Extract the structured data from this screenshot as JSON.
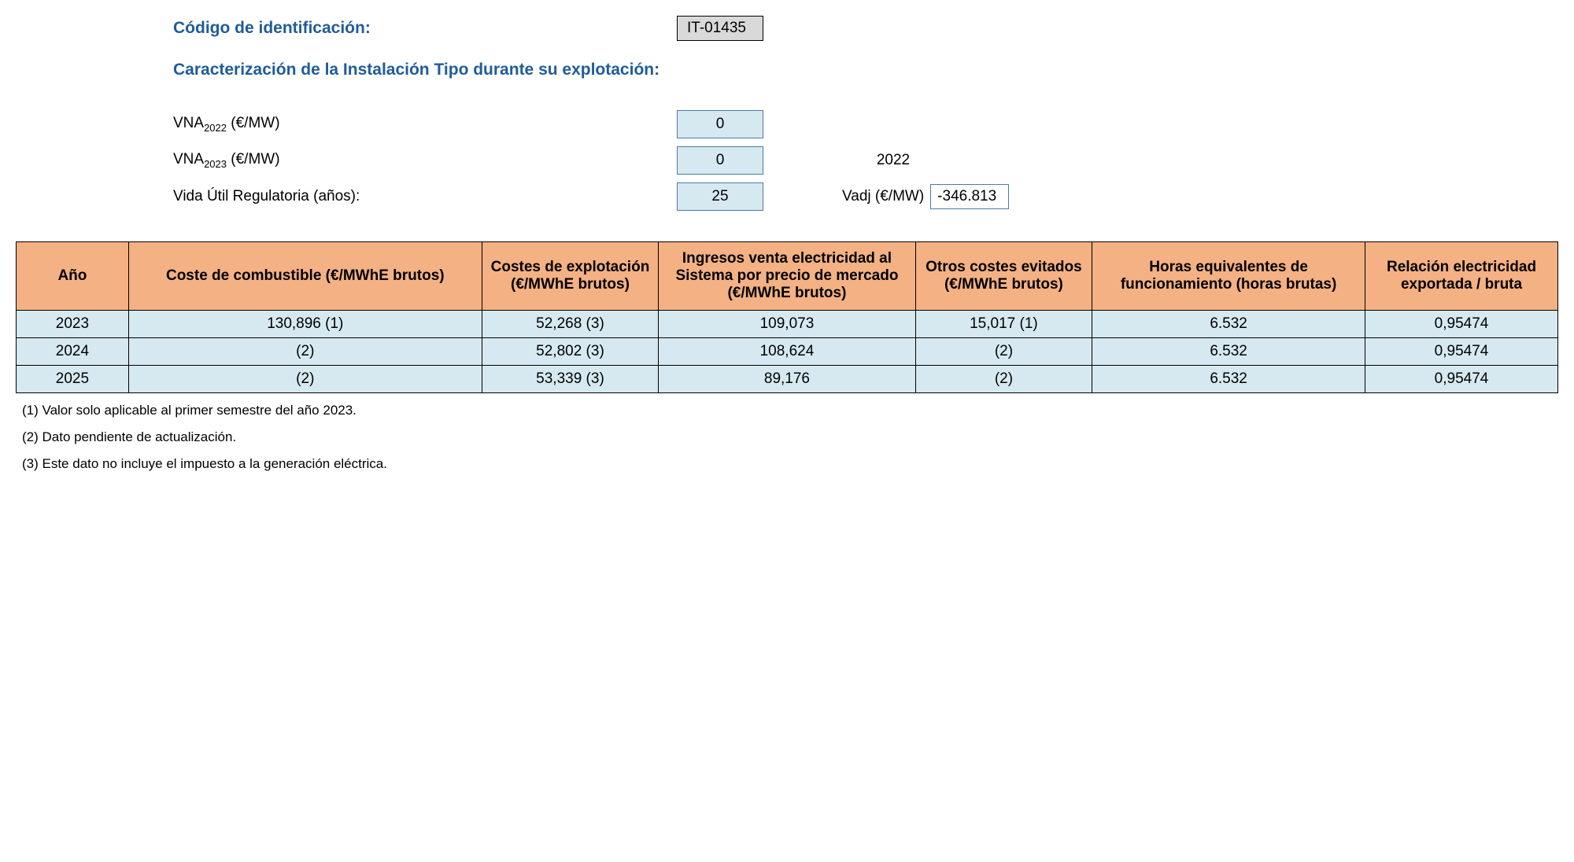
{
  "header": {
    "code_label": "Código de identificación:",
    "code_value": "IT-01435",
    "section_title": "Caracterización de la Instalación Tipo durante su explotación:"
  },
  "params": {
    "vna2022_label_pre": "VNA",
    "vna2022_sub": "2022",
    "vna2022_label_post": " (€/MW)",
    "vna2022_value": "0",
    "vna2023_label_pre": "VNA",
    "vna2023_sub": "2023",
    "vna2023_label_post": " (€/MW)",
    "vna2023_value": "0",
    "year_side": "2022",
    "vida_label": "Vida Útil Regulatoria (años):",
    "vida_value": "25",
    "vadj_label": "Vadj (€/MW)",
    "vadj_value": "-346.813"
  },
  "table": {
    "headers": {
      "year": "Año",
      "fuel": "Coste de combustible (€/MWhE brutos)",
      "exploit": "Costes de explotación (€/MWhE brutos)",
      "income": "Ingresos venta electricidad al Sistema por precio de mercado (€/MWhE brutos)",
      "other": "Otros costes evitados (€/MWhE brutos)",
      "hours": "Horas equivalentes de funcionamiento (horas brutas)",
      "ratio": "Relación electricidad exportada / bruta"
    },
    "rows": [
      {
        "year": "2023",
        "fuel": "130,896 (1)",
        "exploit": "52,268 (3)",
        "income": "109,073",
        "other": "15,017 (1)",
        "hours": "6.532",
        "ratio": "0,95474"
      },
      {
        "year": "2024",
        "fuel": "(2)",
        "exploit": "52,802 (3)",
        "income": "108,624",
        "other": "(2)",
        "hours": "6.532",
        "ratio": "0,95474"
      },
      {
        "year": "2025",
        "fuel": "(2)",
        "exploit": "53,339 (3)",
        "income": "89,176",
        "other": "(2)",
        "hours": "6.532",
        "ratio": "0,95474"
      }
    ]
  },
  "footnotes": {
    "n1": "(1) Valor solo aplicable al primer semestre del año 2023.",
    "n2": "(2) Dato pendiente de actualización.",
    "n3": "(3) Este dato no incluye el impuesto a la generación eléctrica."
  },
  "colors": {
    "heading": "#1f5c99",
    "header_bg": "#f4b183",
    "cell_bg": "#d6e9f0",
    "code_bg": "#d9d9d9",
    "border": "#000000",
    "value_border": "#4a7ba6"
  }
}
